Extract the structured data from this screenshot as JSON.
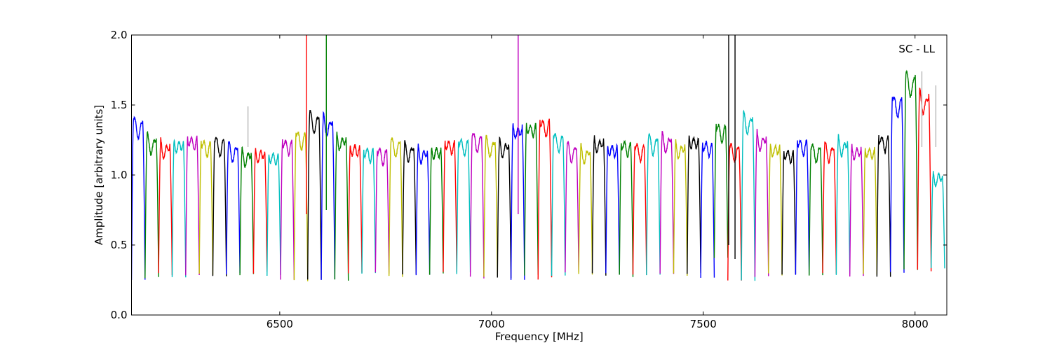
{
  "chart_data": {
    "type": "line",
    "annotation": "SC - LL",
    "xlabel": "Frequency [MHz]",
    "ylabel": "Amplitude [arbitrary units]",
    "xlim": [
      6150,
      8075
    ],
    "ylim": [
      0,
      2.0
    ],
    "x_ticks": [
      6500,
      7000,
      7500,
      8000
    ],
    "x_tick_labels": [
      "6500",
      "7000",
      "7500",
      "8000"
    ],
    "y_ticks": [
      0.0,
      0.5,
      1.0,
      1.5,
      2.0
    ],
    "y_tick_labels": [
      "0.0",
      "0.5",
      "1.0",
      "1.5",
      "2.0"
    ],
    "grid": false,
    "colors": [
      "#0000ff",
      "#008000",
      "#ff0000",
      "#00bfbf",
      "#bf00bf",
      "#bfbf00",
      "#000000"
    ],
    "shadow_color": "#c0c0c0",
    "spw_width_mhz": 32,
    "spw_starts_mhz": [
      6150,
      6182,
      6214,
      6246,
      6278,
      6310,
      6342,
      6374,
      6406,
      6438,
      6470,
      6502,
      6534,
      6566,
      6598,
      6630,
      6662,
      6694,
      6726,
      6758,
      6790,
      6822,
      6854,
      6886,
      6918,
      6950,
      6982,
      7014,
      7046,
      7078,
      7110,
      7142,
      7174,
      7206,
      7238,
      7270,
      7302,
      7334,
      7366,
      7398,
      7430,
      7462,
      7494,
      7526,
      7558,
      7590,
      7622,
      7654,
      7686,
      7718,
      7750,
      7782,
      7814,
      7846,
      7878,
      7910,
      7942,
      7974,
      8006,
      8038
    ],
    "spw_peak_levels": [
      1.39,
      1.26,
      1.22,
      1.25,
      1.28,
      1.24,
      1.25,
      1.2,
      1.16,
      1.18,
      1.16,
      1.25,
      1.3,
      1.43,
      1.4,
      1.28,
      1.22,
      1.19,
      1.18,
      1.24,
      1.2,
      1.18,
      1.2,
      1.25,
      1.25,
      1.28,
      1.24,
      1.23,
      1.36,
      1.38,
      1.4,
      1.28,
      1.2,
      1.18,
      1.26,
      1.22,
      1.24,
      1.21,
      1.26,
      1.27,
      1.22,
      1.28,
      1.24,
      1.36,
      1.2,
      1.42,
      1.28,
      1.22,
      1.18,
      1.25,
      1.2,
      1.2,
      1.24,
      1.2,
      1.2,
      1.28,
      1.56,
      1.72,
      1.58,
      1.0
    ],
    "spw_min_levels": [
      0.26,
      0.27,
      0.29,
      0.27,
      0.28,
      0.29,
      0.28,
      0.29,
      0.29,
      0.3,
      0.28,
      0.25,
      0.24,
      0.26,
      0.25,
      0.25,
      0.3,
      0.29,
      0.3,
      0.28,
      0.29,
      0.29,
      0.29,
      0.3,
      0.3,
      0.27,
      0.28,
      0.27,
      0.25,
      0.29,
      0.26,
      0.28,
      0.3,
      0.29,
      0.29,
      0.29,
      0.28,
      0.29,
      0.28,
      0.3,
      0.29,
      0.3,
      0.26,
      0.4,
      0.25,
      0.24,
      0.28,
      0.29,
      0.29,
      0.28,
      0.29,
      0.29,
      0.29,
      0.28,
      0.29,
      0.27,
      0.3,
      0.32,
      0.32,
      0.33
    ],
    "spikes": [
      {
        "x": 6563,
        "y_low": 0.72,
        "y_high": 2.0,
        "color": "#ff0000"
      },
      {
        "x": 6610,
        "y_low": 0.75,
        "y_high": 2.0,
        "color": "#008000"
      },
      {
        "x": 7063,
        "y_low": 0.72,
        "y_high": 2.0,
        "color": "#bf00bf"
      },
      {
        "x": 7560,
        "y_low": 0.5,
        "y_high": 2.0,
        "color": "#000000"
      },
      {
        "x": 7575,
        "y_low": 0.4,
        "y_high": 2.0,
        "color": "#000000"
      }
    ],
    "shadow_peaks": [
      {
        "x": 6425,
        "y": 1.49
      },
      {
        "x": 8016,
        "y": 1.74
      },
      {
        "x": 8049,
        "y": 1.64
      }
    ]
  }
}
